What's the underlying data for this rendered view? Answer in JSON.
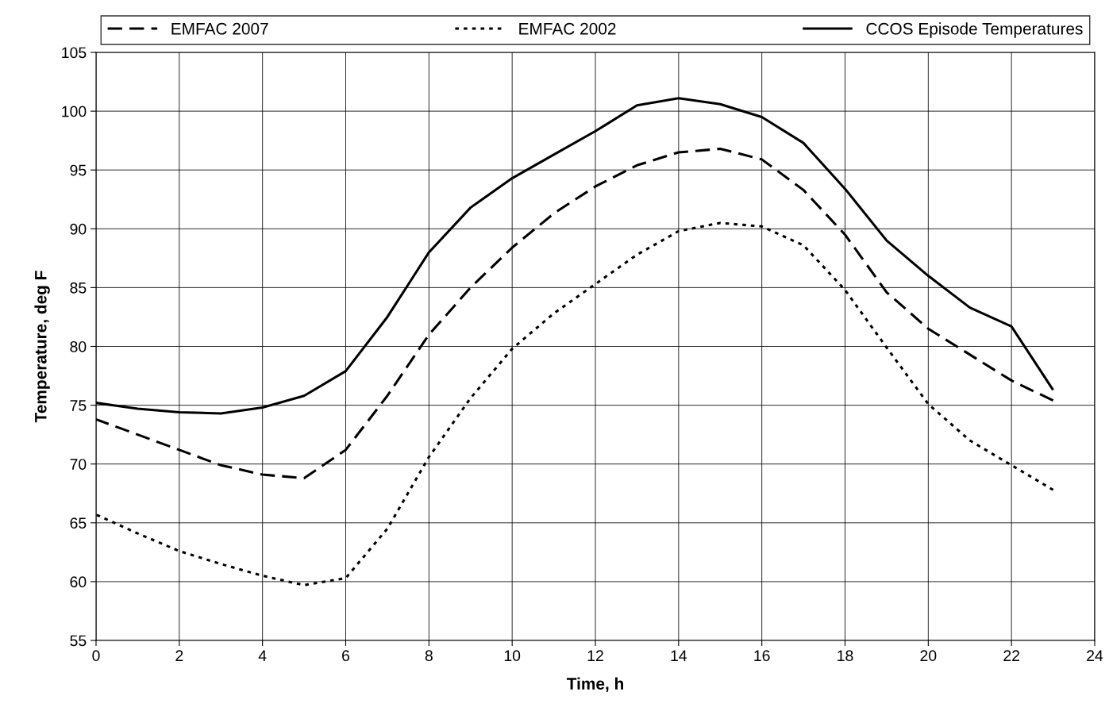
{
  "chart_data": {
    "type": "line",
    "xlabel": "Time, h",
    "ylabel": "Temperature, deg F",
    "x": [
      0,
      1,
      2,
      3,
      4,
      5,
      6,
      7,
      8,
      9,
      10,
      11,
      12,
      13,
      14,
      15,
      16,
      17,
      18,
      19,
      20,
      21,
      22,
      23
    ],
    "series": [
      {
        "name": "EMFAC 2007",
        "color": "#000000",
        "line_style": "dashed",
        "values": [
          73.8,
          72.5,
          71.2,
          69.9,
          69.1,
          68.8,
          71.2,
          75.8,
          81.0,
          85.0,
          88.4,
          91.3,
          93.6,
          95.4,
          96.5,
          96.8,
          95.9,
          93.3,
          89.5,
          84.6,
          81.5,
          79.3,
          77.1,
          75.4
        ]
      },
      {
        "name": "EMFAC 2002",
        "color": "#000000",
        "line_style": "dotted",
        "values": [
          65.7,
          64.1,
          62.6,
          61.5,
          60.5,
          59.7,
          60.3,
          64.5,
          70.6,
          75.6,
          79.8,
          82.8,
          85.3,
          87.8,
          89.8,
          90.5,
          90.2,
          88.6,
          84.8,
          79.9,
          75.1,
          72.0,
          69.9,
          67.8
        ]
      },
      {
        "name": "CCOS Episode Temperatures",
        "color": "#000000",
        "line_style": "solid",
        "values": [
          75.2,
          74.7,
          74.4,
          74.3,
          74.8,
          75.8,
          77.9,
          82.5,
          88.0,
          91.8,
          94.3,
          96.3,
          98.3,
          100.5,
          101.1,
          100.6,
          99.5,
          97.3,
          93.4,
          89.0,
          86.0,
          83.3,
          81.7,
          76.3
        ]
      }
    ],
    "xlim": [
      0,
      24
    ],
    "xticks": [
      0,
      2,
      4,
      6,
      8,
      10,
      12,
      14,
      16,
      18,
      20,
      22,
      24
    ],
    "ylim": [
      55,
      105
    ],
    "yticks": [
      55,
      60,
      65,
      70,
      75,
      80,
      85,
      90,
      95,
      100,
      105
    ],
    "grid": true,
    "legend": "top",
    "marker": "none"
  }
}
